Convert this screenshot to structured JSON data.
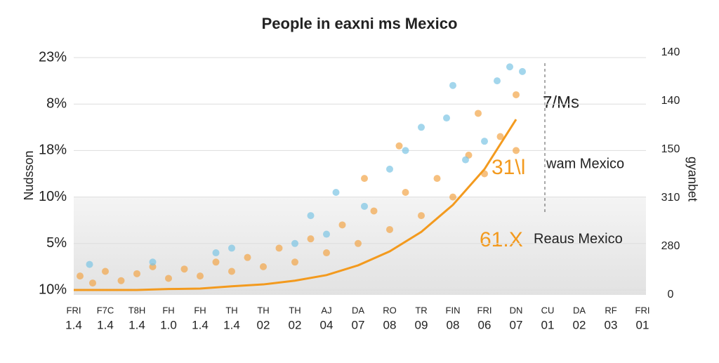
{
  "chart_data": {
    "type": "line",
    "title": "People in eaxni ms Mexico",
    "y_label": "Nudsson",
    "y2_label": "gyanbet",
    "y_labels": [
      "23%",
      "8%",
      "18%",
      "10%",
      "5%",
      "10%"
    ],
    "y2_labels": [
      "140",
      "140",
      "150",
      "310",
      "280",
      "0"
    ],
    "categories": [
      [
        "FRI",
        "1.4"
      ],
      [
        "F7C",
        "1.4"
      ],
      [
        "T8H",
        "1.4"
      ],
      [
        "FH",
        "1.0"
      ],
      [
        "FH",
        "1.4"
      ],
      [
        "TH",
        "1.4"
      ],
      [
        "TH",
        "02"
      ],
      [
        "TH",
        "02"
      ],
      [
        "AJ",
        "04"
      ],
      [
        "DA",
        "07"
      ],
      [
        "RO",
        "08"
      ],
      [
        "TR",
        "09"
      ],
      [
        "FIN",
        "08"
      ],
      [
        "FRI",
        "06"
      ],
      [
        "DN",
        "07"
      ],
      [
        "CU",
        "01"
      ],
      [
        "DA",
        "02"
      ],
      [
        "RF",
        "03"
      ],
      [
        "FRI",
        "01"
      ]
    ],
    "xlim": [
      0,
      18
    ],
    "ylim": [
      0,
      5
    ],
    "grid": true,
    "annotations": [
      "7/Ms",
      "31\\l",
      "wam Mexico",
      "61.X",
      "Reaus Mexico"
    ],
    "series": [
      {
        "type": "scatter",
        "color": "#f2a548",
        "x": [
          0.2,
          0.6,
          1,
          1.5,
          2,
          2.5,
          3,
          3.5,
          4,
          4.5,
          5,
          5.5,
          6,
          6.5,
          7,
          7.5,
          8,
          8.5,
          9,
          9.5,
          10,
          10.5,
          11,
          11.5,
          12,
          12.5,
          13,
          13.5,
          14,
          14,
          12.8,
          10.3,
          9.2
        ],
        "y": [
          0.3,
          0.15,
          0.4,
          0.2,
          0.35,
          0.5,
          0.25,
          0.45,
          0.3,
          0.6,
          0.4,
          0.7,
          0.5,
          0.9,
          0.6,
          1.1,
          0.8,
          1.4,
          1.0,
          1.7,
          1.3,
          2.1,
          1.6,
          2.4,
          2.0,
          2.9,
          2.5,
          3.3,
          3.0,
          4.2,
          3.8,
          3.1,
          2.4
        ]
      },
      {
        "type": "scatter",
        "color": "#7cc4e4",
        "x": [
          0.5,
          2.5,
          4.5,
          5,
          7,
          7.5,
          8,
          8.3,
          9.2,
          10,
          10.5,
          11,
          11.8,
          12.4,
          13,
          13.4,
          13.8,
          14.2,
          12
        ],
        "y": [
          0.55,
          0.6,
          0.8,
          0.9,
          1.0,
          1.6,
          1.2,
          2.1,
          1.8,
          2.6,
          3.0,
          3.5,
          3.7,
          2.8,
          3.2,
          4.5,
          4.8,
          4.7,
          4.4
        ]
      },
      {
        "type": "line",
        "color": "#f39a1e",
        "values": [
          0,
          0,
          0,
          0.02,
          0.03,
          0.08,
          0.12,
          0.2,
          0.32,
          0.53,
          0.83,
          1.25,
          1.83,
          2.6,
          3.67,
          null,
          null,
          null,
          null
        ]
      }
    ]
  }
}
